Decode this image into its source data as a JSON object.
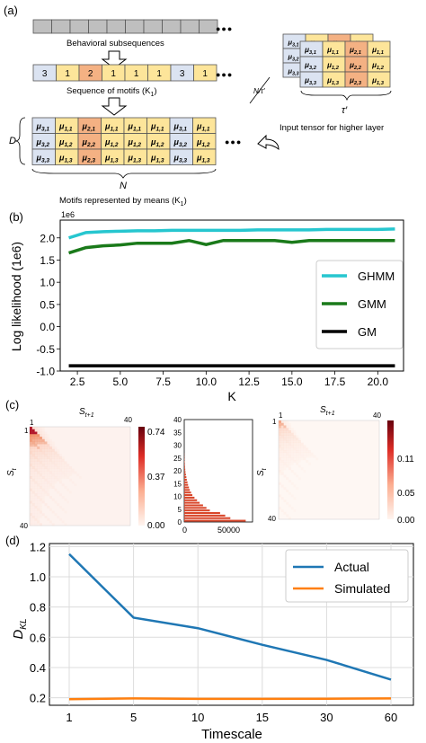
{
  "panel_a": {
    "label": "(a)",
    "behavioral_label": "Behavioral subsequences",
    "motif_seq_label": "Sequence of motifs (K",
    "motif_seq_sub": "1",
    "motif_seq_tail": ")",
    "motif_seq": [
      "3",
      "1",
      "2",
      "1",
      "1",
      "1",
      "3",
      "1"
    ],
    "means_grid": [
      [
        "μ3,1",
        "μ1,1",
        "μ2,1",
        "μ1,1",
        "μ1,1",
        "μ1,1",
        "μ3,1",
        "μ1,1"
      ],
      [
        "μ3,2",
        "μ1,2",
        "μ2,2",
        "μ1,2",
        "μ1,2",
        "μ1,2",
        "μ3,2",
        "μ1,2"
      ],
      [
        "μ3,3",
        "μ1,3",
        "μ2,3",
        "μ1,3",
        "μ1,3",
        "μ1,3",
        "μ3,3",
        "μ1,3"
      ]
    ],
    "tensor_grid": [
      [
        "μ3,1",
        "μ1,1",
        "μ2,1",
        "μ1,1"
      ],
      [
        "μ3,2",
        "μ1,2",
        "μ2,2",
        "μ1,2"
      ],
      [
        "μ3,3",
        "μ1,3",
        "μ2,3",
        "μ1,3"
      ]
    ],
    "d_label": "D",
    "n_label": "N",
    "motifs_label": "Motifs represented by means (K",
    "motifs_sub": "1",
    "motifs_tail": ")",
    "n_over_tau": "N/τ′",
    "tau_label": "τ′",
    "tensor_label": "Input tensor for higher layer",
    "ellipsis": "●●●",
    "colors": {
      "blue": "#dbe3f1",
      "yellow": "#fde59a",
      "orange": "#f4b183",
      "gray": "#bfbfbf"
    }
  },
  "panel_b": {
    "label": "(b)",
    "chart_data": {
      "type": "line",
      "x": [
        2,
        3,
        4,
        5,
        6,
        7,
        8,
        9,
        10,
        11,
        12,
        13,
        14,
        15,
        16,
        17,
        18,
        19,
        20,
        21
      ],
      "series": [
        {
          "name": "GHMM",
          "color": "#26c6cf",
          "values": [
            2.0,
            2.12,
            2.14,
            2.15,
            2.16,
            2.16,
            2.17,
            2.17,
            2.17,
            2.17,
            2.17,
            2.18,
            2.18,
            2.18,
            2.18,
            2.19,
            2.19,
            2.19,
            2.19,
            2.2
          ]
        },
        {
          "name": "GMM",
          "color": "#1a7a1a",
          "values": [
            1.66,
            1.78,
            1.82,
            1.84,
            1.88,
            1.88,
            1.88,
            1.94,
            1.85,
            1.94,
            1.94,
            1.94,
            1.94,
            1.9,
            1.94,
            1.94,
            1.94,
            1.94,
            1.94,
            1.94
          ]
        },
        {
          "name": "GM",
          "color": "#000000",
          "values": [
            -0.88,
            -0.88,
            -0.88,
            -0.88,
            -0.88,
            -0.88,
            -0.88,
            -0.88,
            -0.88,
            -0.88,
            -0.88,
            -0.88,
            -0.88,
            -0.88,
            -0.88,
            -0.88,
            -0.88,
            -0.88,
            -0.88,
            -0.88
          ]
        }
      ],
      "xlabel": "K",
      "ylabel": "Log likelihood (1e6)",
      "offset_text": "1e6",
      "xlim": [
        1.5,
        21.5
      ],
      "ylim": [
        -1.0,
        2.4
      ],
      "xticks": [
        "2.5",
        "5.0",
        "7.5",
        "10.0",
        "12.5",
        "15.0",
        "17.5",
        "20.0"
      ],
      "yticks": [
        "-1.0",
        "-0.5",
        "0.0",
        "0.5",
        "1.0",
        "1.5",
        "2.0"
      ],
      "legend_placement": "center-right",
      "grid": false
    }
  },
  "panel_c": {
    "label": "(c)",
    "left_heatmap": {
      "xlabel": "S",
      "xlabel_sub": "t+1",
      "ylabel": "S",
      "ylabel_sub": "t",
      "x_start": "1",
      "x_end": "40",
      "y_start": "1",
      "y_end": "40",
      "colorbar_ticks": [
        "0.74",
        "0.37",
        "0.00"
      ]
    },
    "bar_hist": {
      "yticks": [
        "0",
        "5",
        "10",
        "15",
        "20",
        "25",
        "30",
        "35",
        "40"
      ],
      "xticks": [
        "0",
        "50000"
      ],
      "values": [
        72000,
        54000,
        48000,
        42000,
        30000,
        26000,
        22000,
        18000,
        15000,
        12000,
        9500,
        8000,
        6500,
        5500,
        4500,
        3800,
        3000,
        2500,
        2000,
        1500,
        1200,
        900,
        700,
        500,
        350,
        250,
        150
      ]
    },
    "right_heatmap": {
      "xlabel": "S",
      "xlabel_sub": "t+1",
      "ylabel": "S",
      "ylabel_sub": "t",
      "x_start": "1",
      "x_end": "40",
      "y_start": "1",
      "y_end": "40",
      "colorbar_ticks": [
        "0.11",
        "0.05",
        "0.00"
      ]
    }
  },
  "panel_d": {
    "label": "(d)",
    "chart_data": {
      "type": "line",
      "categories": [
        "1",
        "5",
        "10",
        "15",
        "30",
        "60"
      ],
      "series": [
        {
          "name": "Actual",
          "color": "#1f77b4",
          "values": [
            1.15,
            0.73,
            0.66,
            0.55,
            0.45,
            0.32
          ]
        },
        {
          "name": "Simulated",
          "color": "#ff7f0e",
          "values": [
            0.19,
            0.195,
            0.192,
            0.192,
            0.193,
            0.195
          ]
        }
      ],
      "xlabel": "Timescale",
      "ylabel": "D",
      "ylabel_sub": "KL",
      "ylim": [
        0.15,
        1.22
      ],
      "yticks": [
        "0.2",
        "0.4",
        "0.6",
        "0.8",
        "1.0",
        "1.2"
      ],
      "legend_placement": "top-right",
      "grid": true
    }
  }
}
